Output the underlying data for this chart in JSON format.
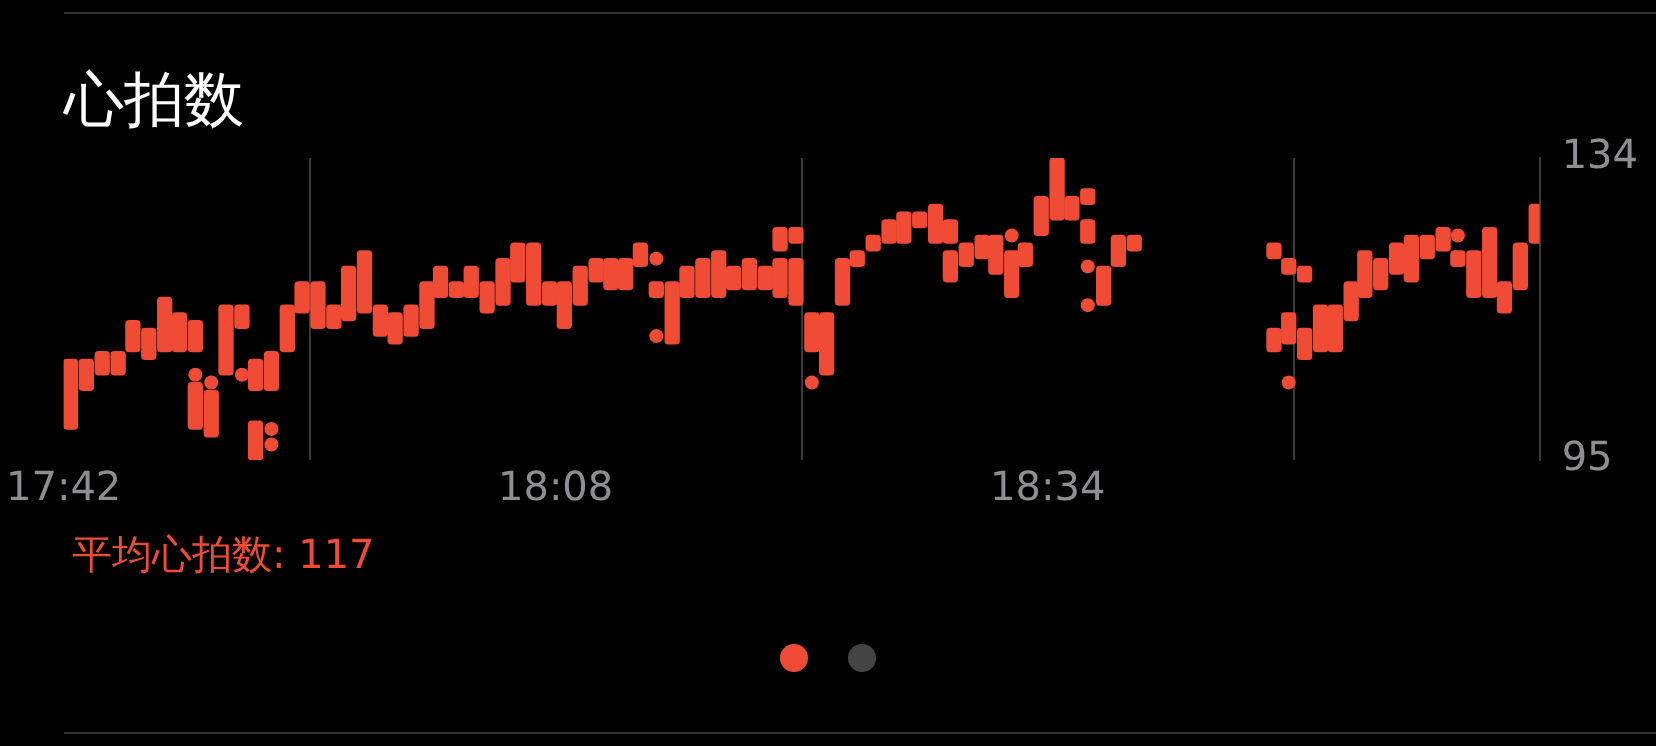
{
  "chart_data": {
    "type": "bar",
    "title": "心拍数",
    "annotations": [
      "平均心拍数: 117"
    ],
    "xlim": [
      17.7,
      19.0
    ],
    "xticks": [
      {
        "value": 17.7,
        "label": "17:42"
      },
      {
        "value": 18.1333,
        "label": "18:08"
      },
      {
        "value": 18.5667,
        "label": "18:34"
      }
    ],
    "ylim": [
      95,
      134
    ],
    "yticks": [
      95,
      134
    ],
    "grid": "x",
    "legend": false,
    "marker": "circle",
    "series": [
      {
        "color": "#ef4b35",
        "x": [
          17.706,
          17.72,
          17.734,
          17.748,
          17.761,
          17.775,
          17.789,
          17.802,
          17.816,
          17.83,
          17.843,
          17.857,
          17.869,
          17.883,
          17.897,
          17.91,
          17.924,
          17.938,
          17.951,
          17.965,
          17.979,
          17.992,
          18.006,
          18.02,
          18.032,
          18.046,
          18.059,
          18.073,
          18.087,
          18.1,
          18.114,
          18.128,
          18.141,
          18.155,
          18.169,
          18.182,
          18.195,
          18.208,
          18.222,
          18.236,
          18.249,
          18.263,
          18.277,
          18.29,
          18.304,
          18.318,
          18.331,
          18.345,
          18.359,
          18.372,
          18.386,
          18.399,
          18.413,
          18.427,
          18.44,
          18.454,
          18.468,
          18.481,
          18.495,
          18.509,
          18.521,
          18.535,
          18.547,
          18.561,
          18.575,
          18.588,
          18.602,
          18.616,
          18.629,
          18.643,
          18.766,
          18.779,
          18.793,
          18.807,
          18.82,
          18.834,
          18.846,
          18.86,
          18.874,
          18.887,
          18.901,
          18.915,
          18.928,
          18.942,
          18.956,
          18.969,
          18.983,
          18.997
        ],
        "base": [
          99,
          104,
          106,
          106,
          109,
          108,
          109,
          109,
          109,
          98,
          106,
          112,
          104,
          104,
          109,
          114,
          112,
          112,
          113,
          114,
          111,
          110,
          111,
          112,
          116,
          116,
          116,
          114,
          115,
          118,
          115,
          115,
          112,
          115,
          118,
          117,
          117,
          120,
          116,
          110,
          116,
          116,
          116,
          117,
          117,
          117,
          122,
          123,
          109,
          106,
          115,
          120,
          122,
          123,
          123,
          125,
          123,
          123,
          120,
          121,
          119,
          116,
          120,
          124,
          126,
          126,
          128,
          115,
          120,
          122,
          121,
          119,
          118,
          109,
          109,
          113,
          116,
          117,
          119,
          118,
          121,
          122,
          120,
          116,
          116,
          114,
          117,
          123
        ],
        "values": [
          9,
          4,
          3,
          3,
          4,
          4,
          7,
          5,
          4,
          6,
          9,
          3,
          4,
          5,
          6,
          4,
          6,
          3,
          7,
          8,
          4,
          4,
          4,
          6,
          4,
          2,
          4,
          4,
          6,
          5,
          8,
          3,
          6,
          5,
          3,
          4,
          4,
          3,
          2,
          8,
          4,
          5,
          6,
          3,
          4,
          3,
          3,
          2,
          5,
          8,
          6,
          2,
          2,
          3,
          4,
          2,
          5,
          3,
          3,
          3,
          5,
          6,
          3,
          5,
          8,
          3,
          2,
          5,
          4,
          2,
          2,
          2,
          2,
          6,
          6,
          5,
          6,
          4,
          4,
          6,
          3,
          3,
          2,
          6,
          9,
          4,
          6,
          5
        ]
      },
      {
        "color": "#ef4b35",
        "x": [
          17.816,
          17.869,
          18.331,
          18.345,
          18.481,
          18.602,
          18.766,
          18.779,
          18.793
        ],
        "base": [
          99,
          95,
          116,
          115,
          118,
          123,
          109,
          110,
          108
        ],
        "values": [
          6,
          5,
          5,
          6,
          4,
          3,
          3,
          4,
          4
        ]
      },
      {
        "type": "scatter",
        "color": "#ef4b35",
        "x": [
          17.816,
          17.83,
          17.857,
          17.883,
          17.883,
          18.222,
          18.222,
          18.359,
          18.535,
          18.602,
          18.602,
          18.779,
          18.928
        ],
        "values": [
          106,
          105,
          106,
          99,
          97,
          121,
          111,
          105,
          124,
          120,
          115,
          105,
          124
        ]
      }
    ]
  }
}
